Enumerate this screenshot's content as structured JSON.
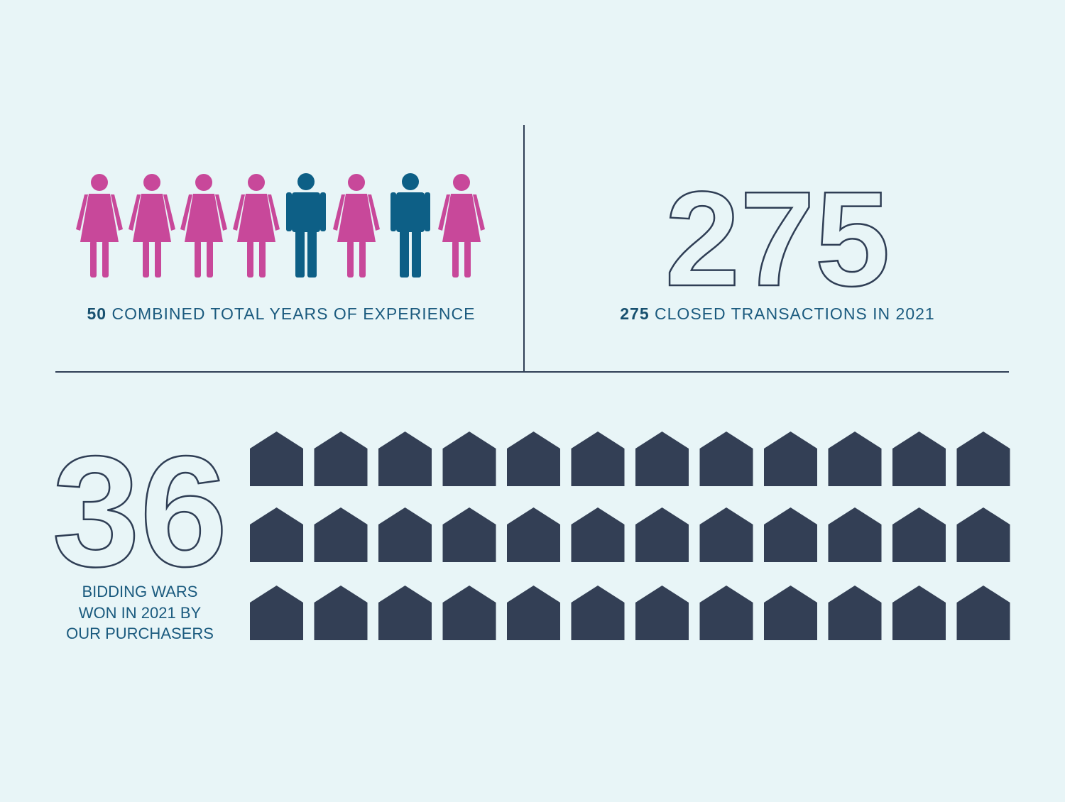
{
  "experience": {
    "number": "50",
    "label": "COMBINED TOTAL YEARS OF EXPERIENCE"
  },
  "transactions": {
    "big_number": "275",
    "number": "275",
    "label": "CLOSED TRANSACTIONS IN 2021"
  },
  "bidding_wars": {
    "big_number": "36",
    "label_lines": [
      "BIDDING WARS",
      "WON IN 2021 BY",
      "OUR PURCHASERS"
    ]
  }
}
